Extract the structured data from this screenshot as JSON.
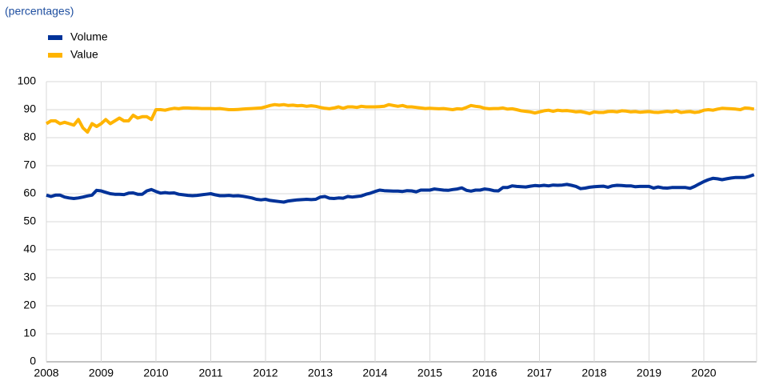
{
  "chart_data": {
    "type": "line",
    "subtitle": "(percentages)",
    "categories": [
      "2008",
      null,
      null,
      null,
      null,
      null,
      null,
      null,
      null,
      null,
      null,
      null,
      "2009",
      null,
      null,
      null,
      null,
      null,
      null,
      null,
      null,
      null,
      null,
      null,
      "2010",
      null,
      null,
      null,
      null,
      null,
      null,
      null,
      null,
      null,
      null,
      null,
      "2011",
      null,
      null,
      null,
      null,
      null,
      null,
      null,
      null,
      null,
      null,
      null,
      "2012",
      null,
      null,
      null,
      null,
      null,
      null,
      null,
      null,
      null,
      null,
      null,
      "2013",
      null,
      null,
      null,
      null,
      null,
      null,
      null,
      null,
      null,
      null,
      null,
      "2014",
      null,
      null,
      null,
      null,
      null,
      null,
      null,
      null,
      null,
      null,
      null,
      "2015",
      null,
      null,
      null,
      null,
      null,
      null,
      null,
      null,
      null,
      null,
      null,
      "2016",
      null,
      null,
      null,
      null,
      null,
      null,
      null,
      null,
      null,
      null,
      null,
      "2017",
      null,
      null,
      null,
      null,
      null,
      null,
      null,
      null,
      null,
      null,
      null,
      "2018",
      null,
      null,
      null,
      null,
      null,
      null,
      null,
      null,
      null,
      null,
      null,
      "2019",
      null,
      null,
      null,
      null,
      null,
      null,
      null,
      null,
      null,
      null,
      null,
      "2020",
      null,
      null,
      null,
      null,
      null,
      null,
      null,
      null,
      null,
      null,
      null
    ],
    "series": [
      {
        "name": "Volume",
        "color": "#003299",
        "values": [
          59.5,
          59,
          59.5,
          59.5,
          58.8,
          58.5,
          58.3,
          58.5,
          58.8,
          59.2,
          59.5,
          61.2,
          61,
          60.5,
          60,
          59.8,
          59.8,
          59.7,
          60.2,
          60.3,
          59.8,
          59.8,
          61,
          61.5,
          60.8,
          60.2,
          60.4,
          60.2,
          60.3,
          59.8,
          59.6,
          59.4,
          59.3,
          59.4,
          59.6,
          59.8,
          60,
          59.6,
          59.3,
          59.3,
          59.4,
          59.2,
          59.3,
          59.1,
          58.8,
          58.5,
          58,
          57.8,
          58,
          57.6,
          57.4,
          57.2,
          57,
          57.4,
          57.6,
          57.8,
          57.9,
          58,
          57.9,
          58,
          58.8,
          59,
          58.4,
          58.3,
          58.5,
          58.4,
          59,
          58.8,
          59,
          59.2,
          59.8,
          60.2,
          60.8,
          61.3,
          61.1,
          61,
          60.9,
          60.9,
          60.8,
          61.1,
          61,
          60.7,
          61.3,
          61.3,
          61.3,
          61.7,
          61.5,
          61.3,
          61.2,
          61.5,
          61.7,
          62.1,
          61.2,
          60.9,
          61.3,
          61.3,
          61.7,
          61.5,
          61.1,
          61,
          62.2,
          62.2,
          62.8,
          62.6,
          62.5,
          62.4,
          62.7,
          62.9,
          62.8,
          63,
          62.8,
          63.1,
          63,
          63.1,
          63.3,
          63,
          62.6,
          61.8,
          62,
          62.3,
          62.5,
          62.6,
          62.7,
          62.3,
          62.8,
          63,
          62.9,
          62.8,
          62.8,
          62.5,
          62.6,
          62.6,
          62.6,
          62,
          62.4,
          62.1,
          62,
          62.2,
          62.2,
          62.2,
          62.2,
          61.9,
          62.6,
          63.5,
          64.3,
          65,
          65.5,
          65.3,
          65,
          65.3,
          65.6,
          65.8,
          65.8,
          65.8,
          66.2,
          66.8
        ]
      },
      {
        "name": "Value",
        "color": "#ffb400",
        "values": [
          85,
          86,
          86,
          85,
          85.5,
          85,
          84.5,
          86.5,
          83.5,
          82,
          85,
          84,
          85,
          86.5,
          85,
          86,
          87,
          86,
          86,
          88,
          87,
          87.5,
          87.5,
          86.5,
          90,
          90,
          89.8,
          90.2,
          90.5,
          90.3,
          90.6,
          90.6,
          90.5,
          90.5,
          90.4,
          90.4,
          90.4,
          90.3,
          90.4,
          90.2,
          90,
          90,
          90.1,
          90.2,
          90.3,
          90.4,
          90.5,
          90.6,
          91,
          91.5,
          91.8,
          91.6,
          91.8,
          91.5,
          91.6,
          91.4,
          91.5,
          91.2,
          91.4,
          91.2,
          90.8,
          90.5,
          90.3,
          90.6,
          91,
          90.5,
          91,
          91,
          90.8,
          91.2,
          91,
          91,
          91,
          91.1,
          91.2,
          91.8,
          91.5,
          91.2,
          91.5,
          91,
          91,
          90.8,
          90.6,
          90.4,
          90.5,
          90.4,
          90.3,
          90.4,
          90.2,
          90,
          90.3,
          90.2,
          90.8,
          91.5,
          91.2,
          91,
          90.5,
          90.3,
          90.4,
          90.4,
          90.6,
          90.2,
          90.3,
          90,
          89.6,
          89.4,
          89.2,
          88.8,
          89.2,
          89.6,
          89.8,
          89.4,
          89.8,
          89.6,
          89.7,
          89.5,
          89.2,
          89.3,
          89,
          88.6,
          89.2,
          89,
          89,
          89.3,
          89.4,
          89.2,
          89.6,
          89.5,
          89.2,
          89.3,
          89.1,
          89.2,
          89.3,
          89.1,
          89,
          89.2,
          89.4,
          89.2,
          89.6,
          89,
          89.2,
          89.3,
          89,
          89.2,
          89.8,
          90,
          89.8,
          90.2,
          90.5,
          90.4,
          90.3,
          90.2,
          90,
          90.6,
          90.5,
          90.2
        ]
      }
    ],
    "ylim": [
      0,
      100
    ],
    "yticks": [
      0,
      10,
      20,
      30,
      40,
      50,
      60,
      70,
      80,
      90,
      100
    ],
    "grid": true
  }
}
